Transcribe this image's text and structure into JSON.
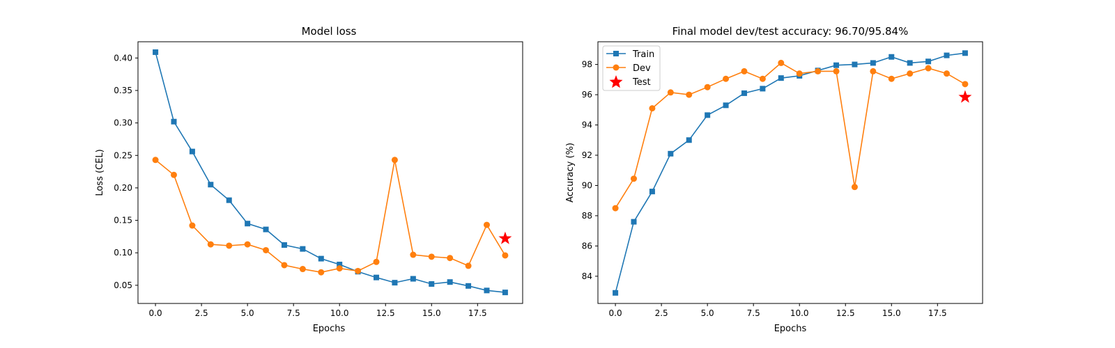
{
  "colors": {
    "train": "#1f77b4",
    "dev": "#ff7f0e",
    "test": "#ff0000"
  },
  "chart_data": [
    {
      "type": "line",
      "title": "Model loss",
      "xlabel": "Epochs",
      "ylabel": "Loss (CEL)",
      "xlim": [
        -0.95,
        19.95
      ],
      "ylim": [
        0.022,
        0.425
      ],
      "xticks": [
        0,
        2.5,
        5,
        7.5,
        10,
        12.5,
        15,
        17.5
      ],
      "xtick_labels": [
        "0.0",
        "2.5",
        "5.0",
        "7.5",
        "10.0",
        "12.5",
        "15.0",
        "17.5"
      ],
      "yticks": [
        0.05,
        0.1,
        0.15,
        0.2,
        0.25,
        0.3,
        0.35,
        0.4
      ],
      "ytick_labels": [
        "0.05",
        "0.10",
        "0.15",
        "0.20",
        "0.25",
        "0.30",
        "0.35",
        "0.40"
      ],
      "grid": false,
      "legend": "none",
      "series": [
        {
          "key": "train",
          "marker": "square",
          "x": [
            0,
            1,
            2,
            3,
            4,
            5,
            6,
            7,
            8,
            9,
            10,
            11,
            12,
            13,
            14,
            15,
            16,
            17,
            18,
            19
          ],
          "values": [
            0.409,
            0.302,
            0.256,
            0.205,
            0.181,
            0.145,
            0.136,
            0.112,
            0.106,
            0.091,
            0.082,
            0.071,
            0.062,
            0.054,
            0.06,
            0.052,
            0.055,
            0.049,
            0.042,
            0.039
          ]
        },
        {
          "key": "dev",
          "marker": "circle",
          "x": [
            0,
            1,
            2,
            3,
            4,
            5,
            6,
            7,
            8,
            9,
            10,
            11,
            12,
            13,
            14,
            15,
            16,
            17,
            18,
            19
          ],
          "values": [
            0.243,
            0.22,
            0.142,
            0.113,
            0.111,
            0.113,
            0.104,
            0.081,
            0.075,
            0.07,
            0.076,
            0.072,
            0.086,
            0.243,
            0.097,
            0.094,
            0.092,
            0.08,
            0.143,
            0.096
          ]
        },
        {
          "key": "test",
          "marker": "star",
          "x": [
            19
          ],
          "values": [
            0.122
          ]
        }
      ]
    },
    {
      "type": "line",
      "title": "Final model dev/test accuracy: 96.70/95.84%",
      "xlabel": "Epochs",
      "ylabel": "Accuracy (%)",
      "xlim": [
        -0.95,
        19.95
      ],
      "ylim": [
        82.2,
        99.5
      ],
      "xticks": [
        0,
        2.5,
        5,
        7.5,
        10,
        12.5,
        15,
        17.5
      ],
      "xtick_labels": [
        "0.0",
        "2.5",
        "5.0",
        "7.5",
        "10.0",
        "12.5",
        "15.0",
        "17.5"
      ],
      "yticks": [
        84,
        86,
        88,
        90,
        92,
        94,
        96,
        98
      ],
      "ytick_labels": [
        "84",
        "86",
        "88",
        "90",
        "92",
        "94",
        "96",
        "98"
      ],
      "grid": false,
      "legend": "upper-left",
      "series": [
        {
          "key": "train",
          "name": "Train",
          "marker": "square",
          "x": [
            0,
            1,
            2,
            3,
            4,
            5,
            6,
            7,
            8,
            9,
            10,
            11,
            12,
            13,
            14,
            15,
            16,
            17,
            18,
            19
          ],
          "values": [
            82.9,
            87.6,
            89.6,
            92.1,
            93.0,
            94.65,
            95.3,
            96.1,
            96.4,
            97.1,
            97.25,
            97.6,
            97.95,
            98.0,
            98.1,
            98.5,
            98.1,
            98.2,
            98.6,
            98.75
          ]
        },
        {
          "key": "dev",
          "name": "Dev",
          "marker": "circle",
          "x": [
            0,
            1,
            2,
            3,
            4,
            5,
            6,
            7,
            8,
            9,
            10,
            11,
            12,
            13,
            14,
            15,
            16,
            17,
            18,
            19
          ],
          "values": [
            88.5,
            90.45,
            95.1,
            96.15,
            96.0,
            96.5,
            97.05,
            97.55,
            97.05,
            98.1,
            97.4,
            97.55,
            97.55,
            89.9,
            97.55,
            97.05,
            97.4,
            97.75,
            97.4,
            96.7
          ]
        },
        {
          "key": "test",
          "name": "Test",
          "marker": "star",
          "x": [
            19
          ],
          "values": [
            95.84
          ]
        }
      ]
    }
  ]
}
